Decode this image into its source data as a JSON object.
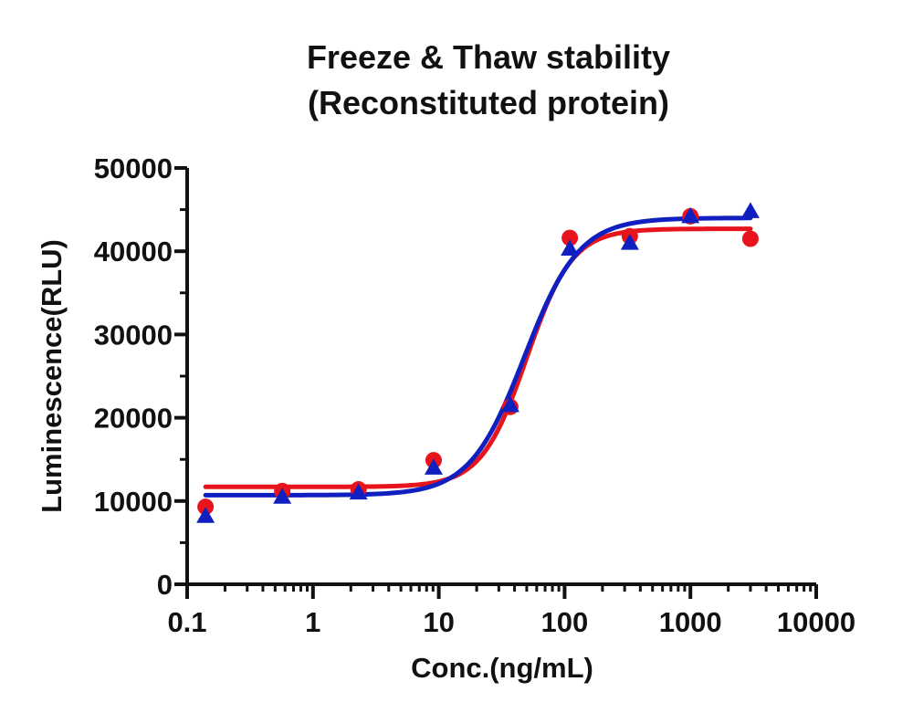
{
  "chart_data": {
    "type": "scatter",
    "title": [
      "Freeze & Thaw stability",
      "(Reconstituted protein)"
    ],
    "xlabel": "Conc.(ng/mL)",
    "ylabel": "Luminescence(RLU)",
    "x_scale": "log",
    "xlim": [
      0.1,
      10000
    ],
    "ylim": [
      0,
      50000
    ],
    "x_ticks": [
      0.1,
      1,
      10,
      100,
      1000,
      10000
    ],
    "x_tick_labels": [
      "0.1",
      "1",
      "10",
      "100",
      "1000",
      "10000"
    ],
    "y_ticks": [
      0,
      10000,
      20000,
      30000,
      40000,
      50000
    ],
    "y_tick_labels": [
      "0",
      "10000",
      "20000",
      "30000",
      "40000",
      "50000"
    ],
    "grid": false,
    "series": [
      {
        "marker": "circle",
        "color": "#e8141c",
        "x": [
          0.14,
          0.57,
          2.3,
          9.1,
          37,
          110,
          330,
          1000,
          3000
        ],
        "y": [
          9300,
          11200,
          11400,
          14900,
          21300,
          41600,
          41800,
          44200,
          41500
        ],
        "fit": {
          "bottom": 11700,
          "top": 42700,
          "ec50": 50,
          "hill": 2.4
        }
      },
      {
        "marker": "triangle",
        "color": "#1020c0",
        "x": [
          0.14,
          0.57,
          2.3,
          9.1,
          37,
          110,
          330,
          1000,
          3000
        ],
        "y": [
          8200,
          10500,
          11000,
          14000,
          21500,
          40300,
          41000,
          44200,
          44800
        ],
        "fit": {
          "bottom": 10700,
          "top": 44000,
          "ec50": 48,
          "hill": 2.0
        }
      }
    ]
  }
}
